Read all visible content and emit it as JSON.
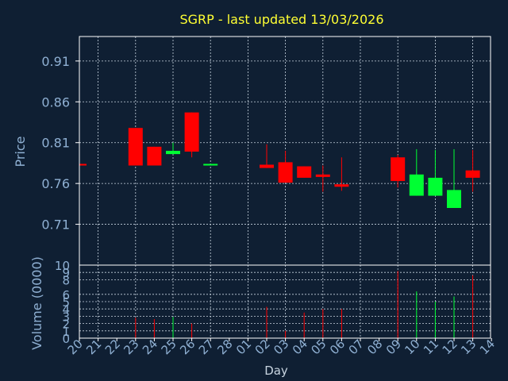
{
  "chart_data": {
    "type": "candlestick",
    "title": "SGRP - last updated 13/03/2026",
    "xlabel": "Day",
    "ylabel": "Price",
    "volume_label": "Volume (0000)",
    "grid": true,
    "price_ylim": [
      0.66,
      0.94
    ],
    "price_ticks": [
      "0.91",
      "0.86",
      "0.81",
      "0.76",
      "0.71"
    ],
    "volume_ylim": [
      0,
      10
    ],
    "volume_ticks": [
      "10",
      "9",
      "8",
      "6",
      "5",
      "4",
      "3",
      "2",
      "1",
      "0"
    ],
    "x_labels": [
      "20",
      "21",
      "22",
      "23",
      "24",
      "25",
      "26",
      "27",
      "28",
      "01",
      "02",
      "03",
      "04",
      "05",
      "06",
      "07",
      "08",
      "09",
      "10",
      "11",
      "12",
      "13",
      "14"
    ],
    "up_color": "#00ff33",
    "down_color": "#ff0000",
    "candles": [
      {
        "day": "20",
        "open": 0.784,
        "close": 0.782,
        "high": 0.784,
        "low": 0.782,
        "volume": 0
      },
      {
        "day": "23",
        "open": 0.828,
        "close": 0.782,
        "high": 0.828,
        "low": 0.782,
        "volume": 2.8
      },
      {
        "day": "24",
        "open": 0.805,
        "close": 0.782,
        "high": 0.805,
        "low": 0.782,
        "volume": 2.6
      },
      {
        "day": "25",
        "open": 0.796,
        "close": 0.8,
        "high": 0.81,
        "low": 0.796,
        "volume": 2.9
      },
      {
        "day": "26",
        "open": 0.847,
        "close": 0.799,
        "high": 0.847,
        "low": 0.792,
        "volume": 2.0
      },
      {
        "day": "27",
        "open": 0.782,
        "close": 0.784,
        "high": 0.784,
        "low": 0.782,
        "volume": 0
      },
      {
        "day": "02",
        "open": 0.783,
        "close": 0.779,
        "high": 0.808,
        "low": 0.779,
        "volume": 4.3
      },
      {
        "day": "03",
        "open": 0.786,
        "close": 0.761,
        "high": 0.8,
        "low": 0.761,
        "volume": 1.0
      },
      {
        "day": "04",
        "open": 0.781,
        "close": 0.767,
        "high": 0.781,
        "low": 0.767,
        "volume": 3.5
      },
      {
        "day": "05",
        "open": 0.771,
        "close": 0.768,
        "high": 0.782,
        "low": 0.75,
        "volume": 4.0
      },
      {
        "day": "06",
        "open": 0.759,
        "close": 0.756,
        "high": 0.792,
        "low": 0.751,
        "volume": 4.0
      },
      {
        "day": "09",
        "open": 0.792,
        "close": 0.763,
        "high": 0.795,
        "low": 0.755,
        "volume": 9.2
      },
      {
        "day": "10",
        "open": 0.745,
        "close": 0.771,
        "high": 0.802,
        "low": 0.745,
        "volume": 6.4
      },
      {
        "day": "11",
        "open": 0.745,
        "close": 0.767,
        "high": 0.801,
        "low": 0.745,
        "volume": 5.0
      },
      {
        "day": "12",
        "open": 0.73,
        "close": 0.752,
        "high": 0.802,
        "low": 0.73,
        "volume": 5.7
      },
      {
        "day": "13",
        "open": 0.776,
        "close": 0.767,
        "high": 0.801,
        "low": 0.75,
        "volume": 8.6
      }
    ]
  }
}
